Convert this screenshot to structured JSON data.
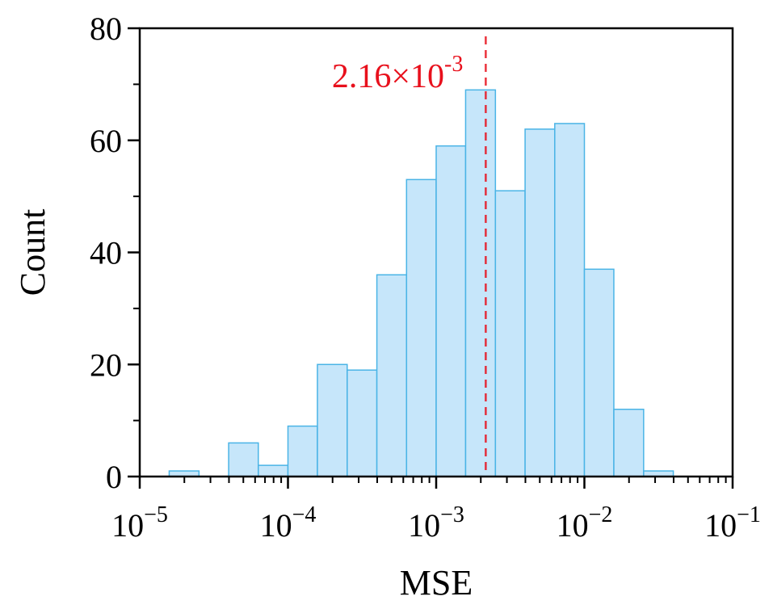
{
  "chart_data": {
    "type": "bar",
    "subtype": "histogram",
    "xscale": "log",
    "xlabel": "MSE",
    "ylabel": "Count",
    "xlim": [
      1e-05,
      0.1
    ],
    "ylim": [
      0,
      80
    ],
    "x_ticks": [
      {
        "value": 1e-05,
        "base": "10",
        "exp": "−5"
      },
      {
        "value": 0.0001,
        "base": "10",
        "exp": "−4"
      },
      {
        "value": 0.001,
        "base": "10",
        "exp": "−3"
      },
      {
        "value": 0.01,
        "base": "10",
        "exp": "−2"
      },
      {
        "value": 0.1,
        "base": "10",
        "exp": "−1"
      }
    ],
    "y_ticks": [
      {
        "value": 0,
        "label": "0"
      },
      {
        "value": 20,
        "label": "20"
      },
      {
        "value": 40,
        "label": "40"
      },
      {
        "value": 60,
        "label": "60"
      },
      {
        "value": 80,
        "label": "80"
      }
    ],
    "bins": [
      {
        "x0": 1.58e-05,
        "x1": 2.51e-05,
        "count": 1
      },
      {
        "x0": 3.98e-05,
        "x1": 6.31e-05,
        "count": 6
      },
      {
        "x0": 6.31e-05,
        "x1": 0.0001,
        "count": 2
      },
      {
        "x0": 0.0001,
        "x1": 0.000158,
        "count": 9
      },
      {
        "x0": 0.000158,
        "x1": 0.000251,
        "count": 20
      },
      {
        "x0": 0.000251,
        "x1": 0.000398,
        "count": 19
      },
      {
        "x0": 0.000398,
        "x1": 0.000631,
        "count": 36
      },
      {
        "x0": 0.000631,
        "x1": 0.001,
        "count": 53
      },
      {
        "x0": 0.001,
        "x1": 0.00158,
        "count": 59
      },
      {
        "x0": 0.00158,
        "x1": 0.00251,
        "count": 69
      },
      {
        "x0": 0.00251,
        "x1": 0.00398,
        "count": 51
      },
      {
        "x0": 0.00398,
        "x1": 0.00631,
        "count": 62
      },
      {
        "x0": 0.00631,
        "x1": 0.01,
        "count": 63
      },
      {
        "x0": 0.01,
        "x1": 0.0158,
        "count": 37
      },
      {
        "x0": 0.0158,
        "x1": 0.0251,
        "count": 12
      },
      {
        "x0": 0.0251,
        "x1": 0.0398,
        "count": 1
      }
    ],
    "annotation": {
      "value": 0.00216,
      "label_main": "2.16×10",
      "label_exp": "-3"
    },
    "colors": {
      "bar_fill": "#c6e6fa",
      "bar_edge": "#4ab4e6",
      "median_line": "#e8101c",
      "axis": "#000000"
    }
  }
}
